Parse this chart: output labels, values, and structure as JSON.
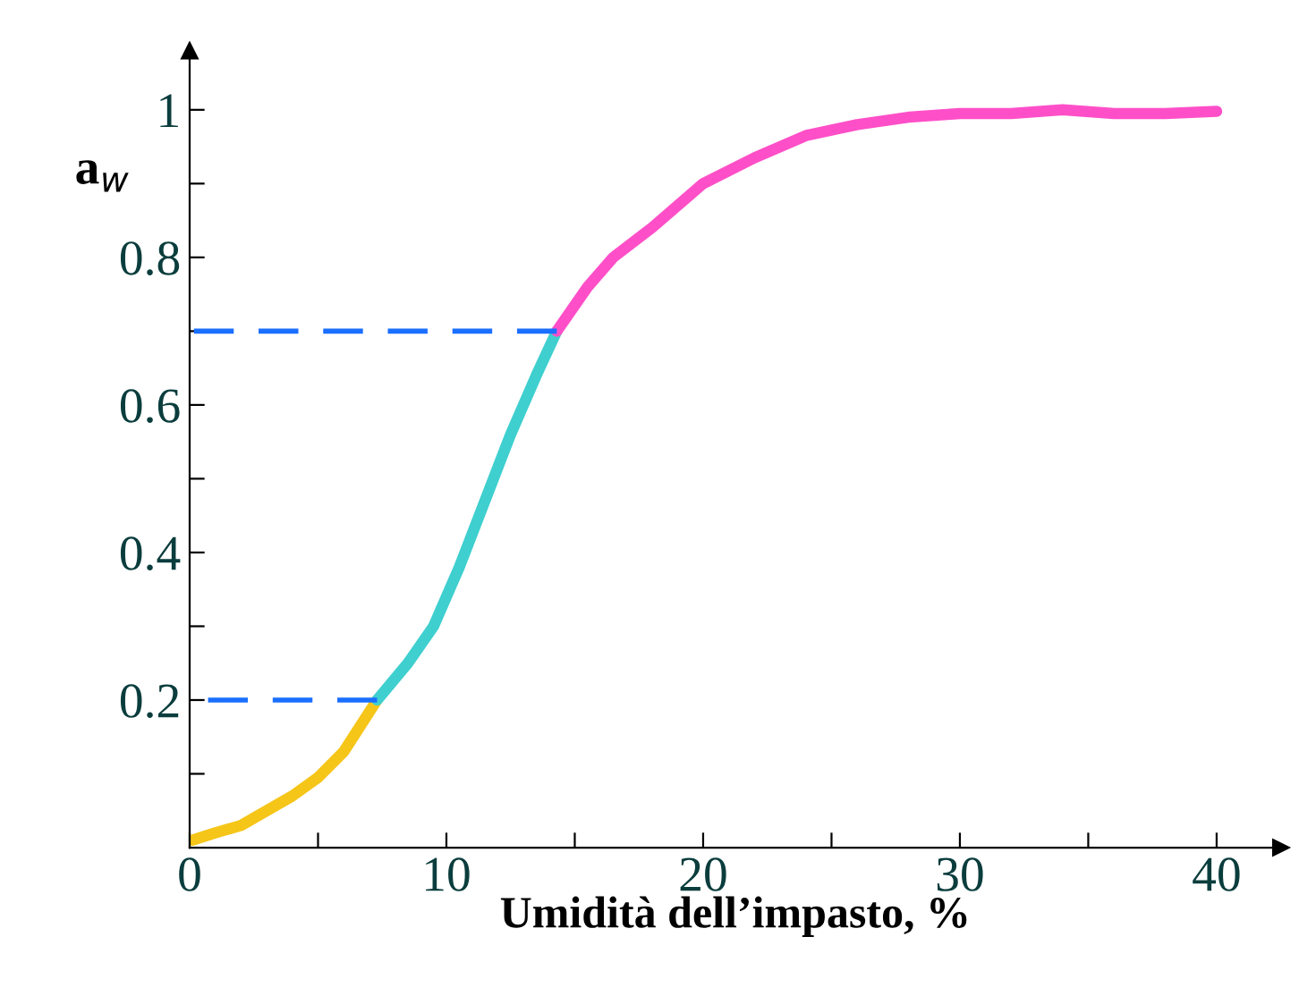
{
  "chart_data": {
    "type": "line",
    "xlabel": "Umidità dell’impasto, %",
    "ylabel": "a$_{w}$",
    "series": [
      {
        "color": "#f5c518",
        "x": [
          0.1,
          1,
          2,
          3,
          4,
          5,
          6,
          7.3
        ],
        "values": [
          0.01,
          0.02,
          0.03,
          0.05,
          0.07,
          0.095,
          0.13,
          0.2
        ]
      },
      {
        "color": "#3fcfcf",
        "x": [
          7.3,
          8.5,
          9.5,
          10.5,
          11.5,
          12.5,
          13.5,
          14.3
        ],
        "values": [
          0.2,
          0.25,
          0.3,
          0.38,
          0.47,
          0.56,
          0.64,
          0.7
        ]
      },
      {
        "color": "#ff4fc8",
        "x": [
          14.3,
          15.5,
          16.5,
          18,
          20,
          22,
          24,
          26,
          28,
          30,
          32,
          34,
          36,
          38,
          40
        ],
        "values": [
          0.7,
          0.76,
          0.8,
          0.84,
          0.9,
          0.935,
          0.965,
          0.98,
          0.99,
          0.995,
          0.995,
          1.0,
          0.995,
          0.995,
          0.998
        ]
      },
      {
        "color": "#1a6fff",
        "line_style": "dashed",
        "x": [
          0,
          7.3
        ],
        "values": [
          0.2,
          0.2
        ]
      },
      {
        "color": "#1a6fff",
        "line_style": "dashed",
        "x": [
          0,
          14.3
        ],
        "values": [
          0.7,
          0.7
        ]
      }
    ],
    "xlim": [
      0,
      42.5
    ],
    "ylim": [
      0,
      1.08
    ],
    "xticks": [
      0,
      {
        "value": 5,
        "label": null
      },
      10,
      {
        "value": 15,
        "label": null
      },
      20,
      {
        "value": 25,
        "label": null
      },
      30,
      {
        "value": 35,
        "label": null
      },
      40
    ],
    "yticks": [
      {
        "value": 0.1,
        "label": null
      },
      0.2,
      {
        "value": 0.3,
        "label": null
      },
      0.4,
      {
        "value": 0.5,
        "label": null
      },
      0.6,
      {
        "value": 0.7,
        "label": null
      },
      0.8,
      {
        "value": 0.9,
        "label": null
      },
      1
    ],
    "grid": false,
    "legend": false,
    "marker": "none"
  }
}
